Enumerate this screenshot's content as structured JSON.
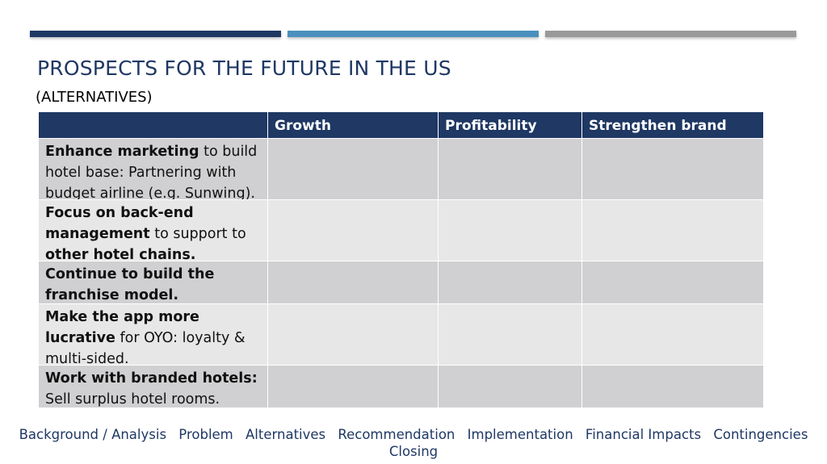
{
  "colors": {
    "bar1": "#1f3864",
    "bar2": "#4a90bf",
    "bar3": "#9a9a9a",
    "header_bg": "#1f3864",
    "row_dark": "#d0d0d2",
    "row_light": "#e7e7e8",
    "title": "#1f3864"
  },
  "slide": {
    "title": "PROSPECTS FOR THE FUTURE IN THE US",
    "subtitle": "(ALTERNATIVES)"
  },
  "table": {
    "headers": [
      "",
      "Growth",
      "Profitability",
      "Strengthen brand"
    ],
    "rows": [
      {
        "bold": "Enhance marketing",
        "mid": " to build hotel base: Partnering with budget airline (e.g. Sunwing).",
        "bold2": "",
        "tail": ""
      },
      {
        "bold": "Focus on back-end management",
        "mid": " to support to ",
        "bold2": "other hotel chains.",
        "tail": ""
      },
      {
        "bold": "Continue to build the franchise model.",
        "mid": "",
        "bold2": "",
        "tail": ""
      },
      {
        "bold": "Make the app more lucrative",
        "mid": " for OYO: loyalty & multi-sided.",
        "bold2": "",
        "tail": ""
      },
      {
        "bold": "Work with branded hotels:",
        "mid": " Sell surplus hotel rooms.",
        "bold2": "",
        "tail": ""
      }
    ]
  },
  "footer": {
    "links": [
      "Background / Analysis",
      "Problem",
      "Alternatives",
      "Recommendation",
      "Implementation",
      "Financial Impacts",
      "Contingencies",
      "Closing"
    ]
  }
}
